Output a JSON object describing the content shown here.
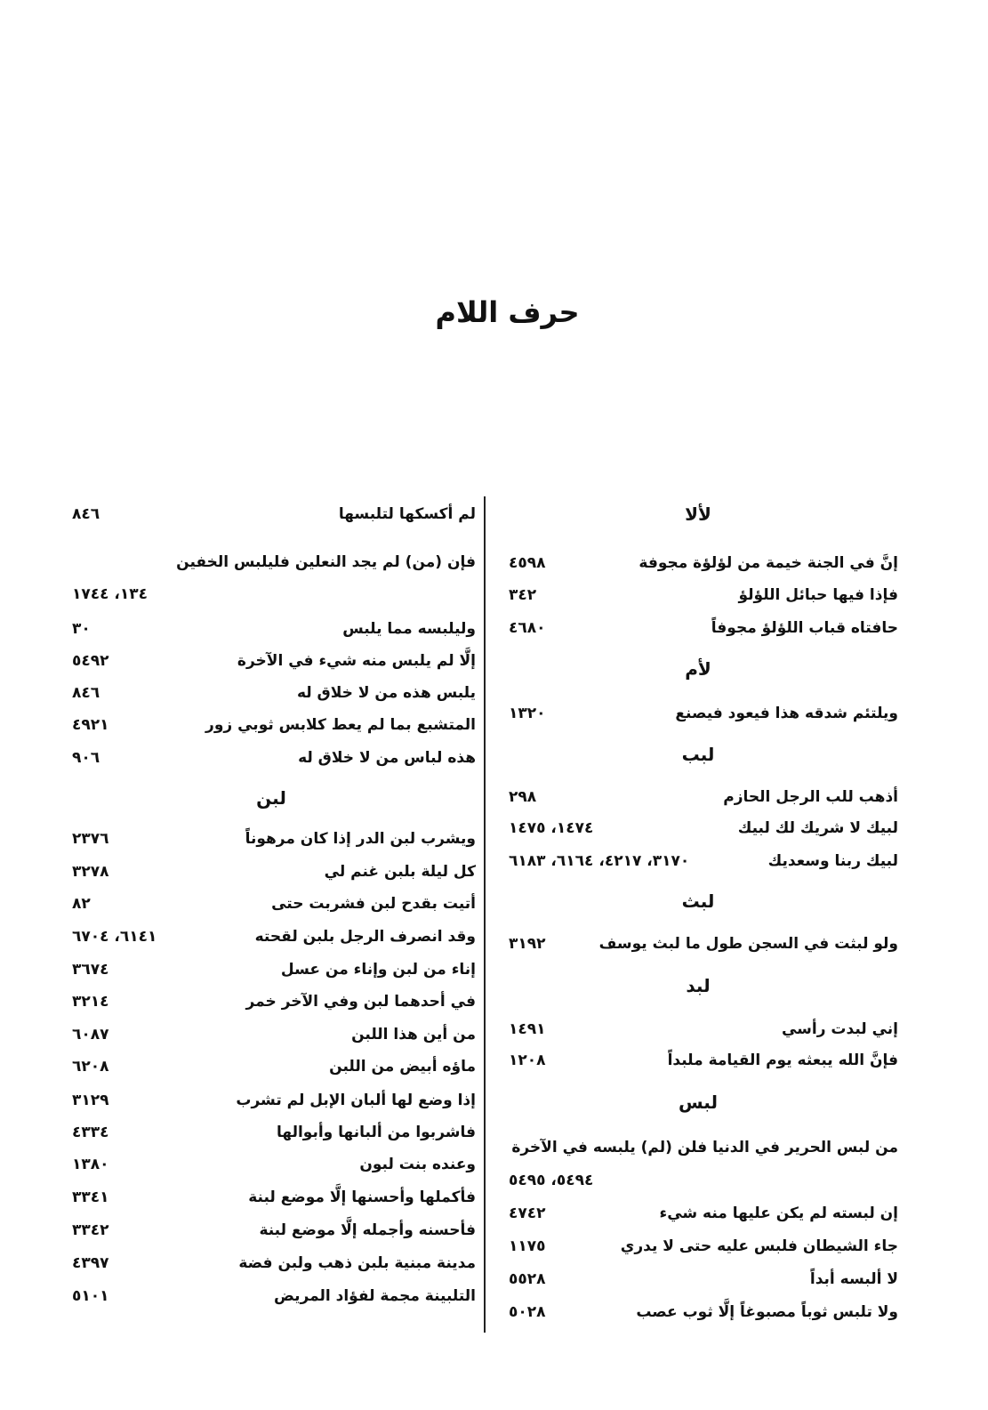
{
  "page_title": "حرف اللام",
  "right_column": [
    {
      "type": "heading",
      "text": "لألا"
    },
    {
      "type": "row",
      "text": "إنَّ في الجنة خيمة من لؤلؤة مجوفة",
      "num": "٤٥٩٨"
    },
    {
      "type": "row",
      "text": "فإذا فيها حبائل اللؤلؤ",
      "num": "٣٤٢"
    },
    {
      "type": "row",
      "text": "حافتاه قباب اللؤلؤ مجوفاً",
      "num": "٤٦٨٠"
    },
    {
      "type": "heading",
      "text": "لأم"
    },
    {
      "type": "row",
      "text": "ويلتئم شدقه هذا فيعود  فيصنع",
      "num": "١٣٢٠"
    },
    {
      "type": "heading",
      "text": "لبب"
    },
    {
      "type": "row",
      "text": "أذهب للب الرجل الحازم",
      "num": "٢٩٨"
    },
    {
      "type": "row",
      "text": "لبيك لا شريك لك لبيك",
      "num": "١٤٧٤، ١٤٧٥"
    },
    {
      "type": "row",
      "text": "لبيك ربنا وسعديك",
      "num": "٣١٧٠، ٤٢١٧، ٦١٦٤، ٦١٨٣"
    },
    {
      "type": "heading",
      "text": "لبث"
    },
    {
      "type": "row",
      "text": "ولو لبثت في السجن طول ما لبث يوسف",
      "num": "٣١٩٢"
    },
    {
      "type": "heading",
      "text": "لبد"
    },
    {
      "type": "row",
      "text": "إني لبدت رأسي",
      "num": "١٤٩١"
    },
    {
      "type": "row",
      "text": "فإنَّ الله يبعثه يوم القيامة ملبداً",
      "num": "١٢٠٨"
    },
    {
      "type": "heading",
      "text": "لبس"
    },
    {
      "type": "row",
      "text": "من لبس الحرير في الدنيا فلن (لم) يلبسه في الآخرة",
      "num": ""
    },
    {
      "type": "row",
      "text": "",
      "num": "٥٤٩٤، ٥٤٩٥"
    },
    {
      "type": "row",
      "text": "إن لبسته لم يكن عليها منه شيء",
      "num": "٤٧٤٢"
    },
    {
      "type": "row",
      "text": "جاء الشيطان فلبس عليه حتى لا يدري",
      "num": "١١٧٥"
    },
    {
      "type": "row",
      "text": "لا ألبسه أبداً",
      "num": "٥٥٢٨"
    },
    {
      "type": "row",
      "text": "ولا تلبس ثوباً مصبوغاً إلَّا ثوب عصب",
      "num": "٥٠٢٨"
    }
  ],
  "left_column": [
    {
      "type": "row",
      "text": "لم أكسكها لتلبسها",
      "num": "٨٤٦"
    },
    {
      "type": "row",
      "text": "فإن (من) لم يجد النعلين فليلبس الخفين",
      "num": ""
    },
    {
      "type": "row",
      "text": "",
      "num": "١٣٤، ١٧٤٤"
    },
    {
      "type": "row",
      "text": "وليلبسه مما يلبس",
      "num": "٣٠"
    },
    {
      "type": "row",
      "text": "إلَّا لم يلبس منه شيء في الآخرة",
      "num": "٥٤٩٢"
    },
    {
      "type": "row",
      "text": "يلبس هذه من لا خلاق له",
      "num": "٨٤٦"
    },
    {
      "type": "row",
      "text": "المتشبع بما لم يعط كلابس ثوبي زور",
      "num": "٤٩٢١"
    },
    {
      "type": "row",
      "text": "هذه لباس من لا خلاق له",
      "num": "٩٠٦"
    },
    {
      "type": "heading",
      "text": "لبن"
    },
    {
      "type": "row",
      "text": "ويشرب لبن الدر إذا كان مرهوناً",
      "num": "٢٣٧٦"
    },
    {
      "type": "row",
      "text": "كل ليلة بلبن غنم لي",
      "num": "٣٢٧٨"
    },
    {
      "type": "row",
      "text": "أتيت بقدح لبن فشربت حتى",
      "num": "٨٢"
    },
    {
      "type": "row",
      "text": "وقد انصرف الرجل بلبن لقحته",
      "num": "٦١٤١، ٦٧٠٤"
    },
    {
      "type": "row",
      "text": "إناء من لبن وإناء من عسل",
      "num": "٣٦٧٤"
    },
    {
      "type": "row",
      "text": "في أحدهما لبن وفي الآخر خمر",
      "num": "٣٢١٤"
    },
    {
      "type": "row",
      "text": "من أين هذا اللبن",
      "num": "٦٠٨٧"
    },
    {
      "type": "row",
      "text": "ماؤه أبيض من اللبن",
      "num": "٦٢٠٨"
    },
    {
      "type": "row",
      "text": "إذا وضع لها ألبان الإبل لم تشرب",
      "num": "٣١٢٩"
    },
    {
      "type": "row",
      "text": "فاشربوا من ألبانها وأبوالها",
      "num": "٤٣٣٤"
    },
    {
      "type": "row",
      "text": "وعنده بنت لبون",
      "num": "١٣٨٠"
    },
    {
      "type": "row",
      "text": "فأكملها وأحسنها إلَّا موضع لبنة",
      "num": "٣٣٤١"
    },
    {
      "type": "row",
      "text": "فأحسنه وأجمله إلَّا موضع لبنة",
      "num": "٣٣٤٢"
    },
    {
      "type": "row",
      "text": "مدينة مبنية بلبن ذهب ولبن فضة",
      "num": "٤٣٩٧"
    },
    {
      "type": "row",
      "text": "التلبينة مجمة لفؤاد المريض",
      "num": "٥١٠١"
    }
  ]
}
